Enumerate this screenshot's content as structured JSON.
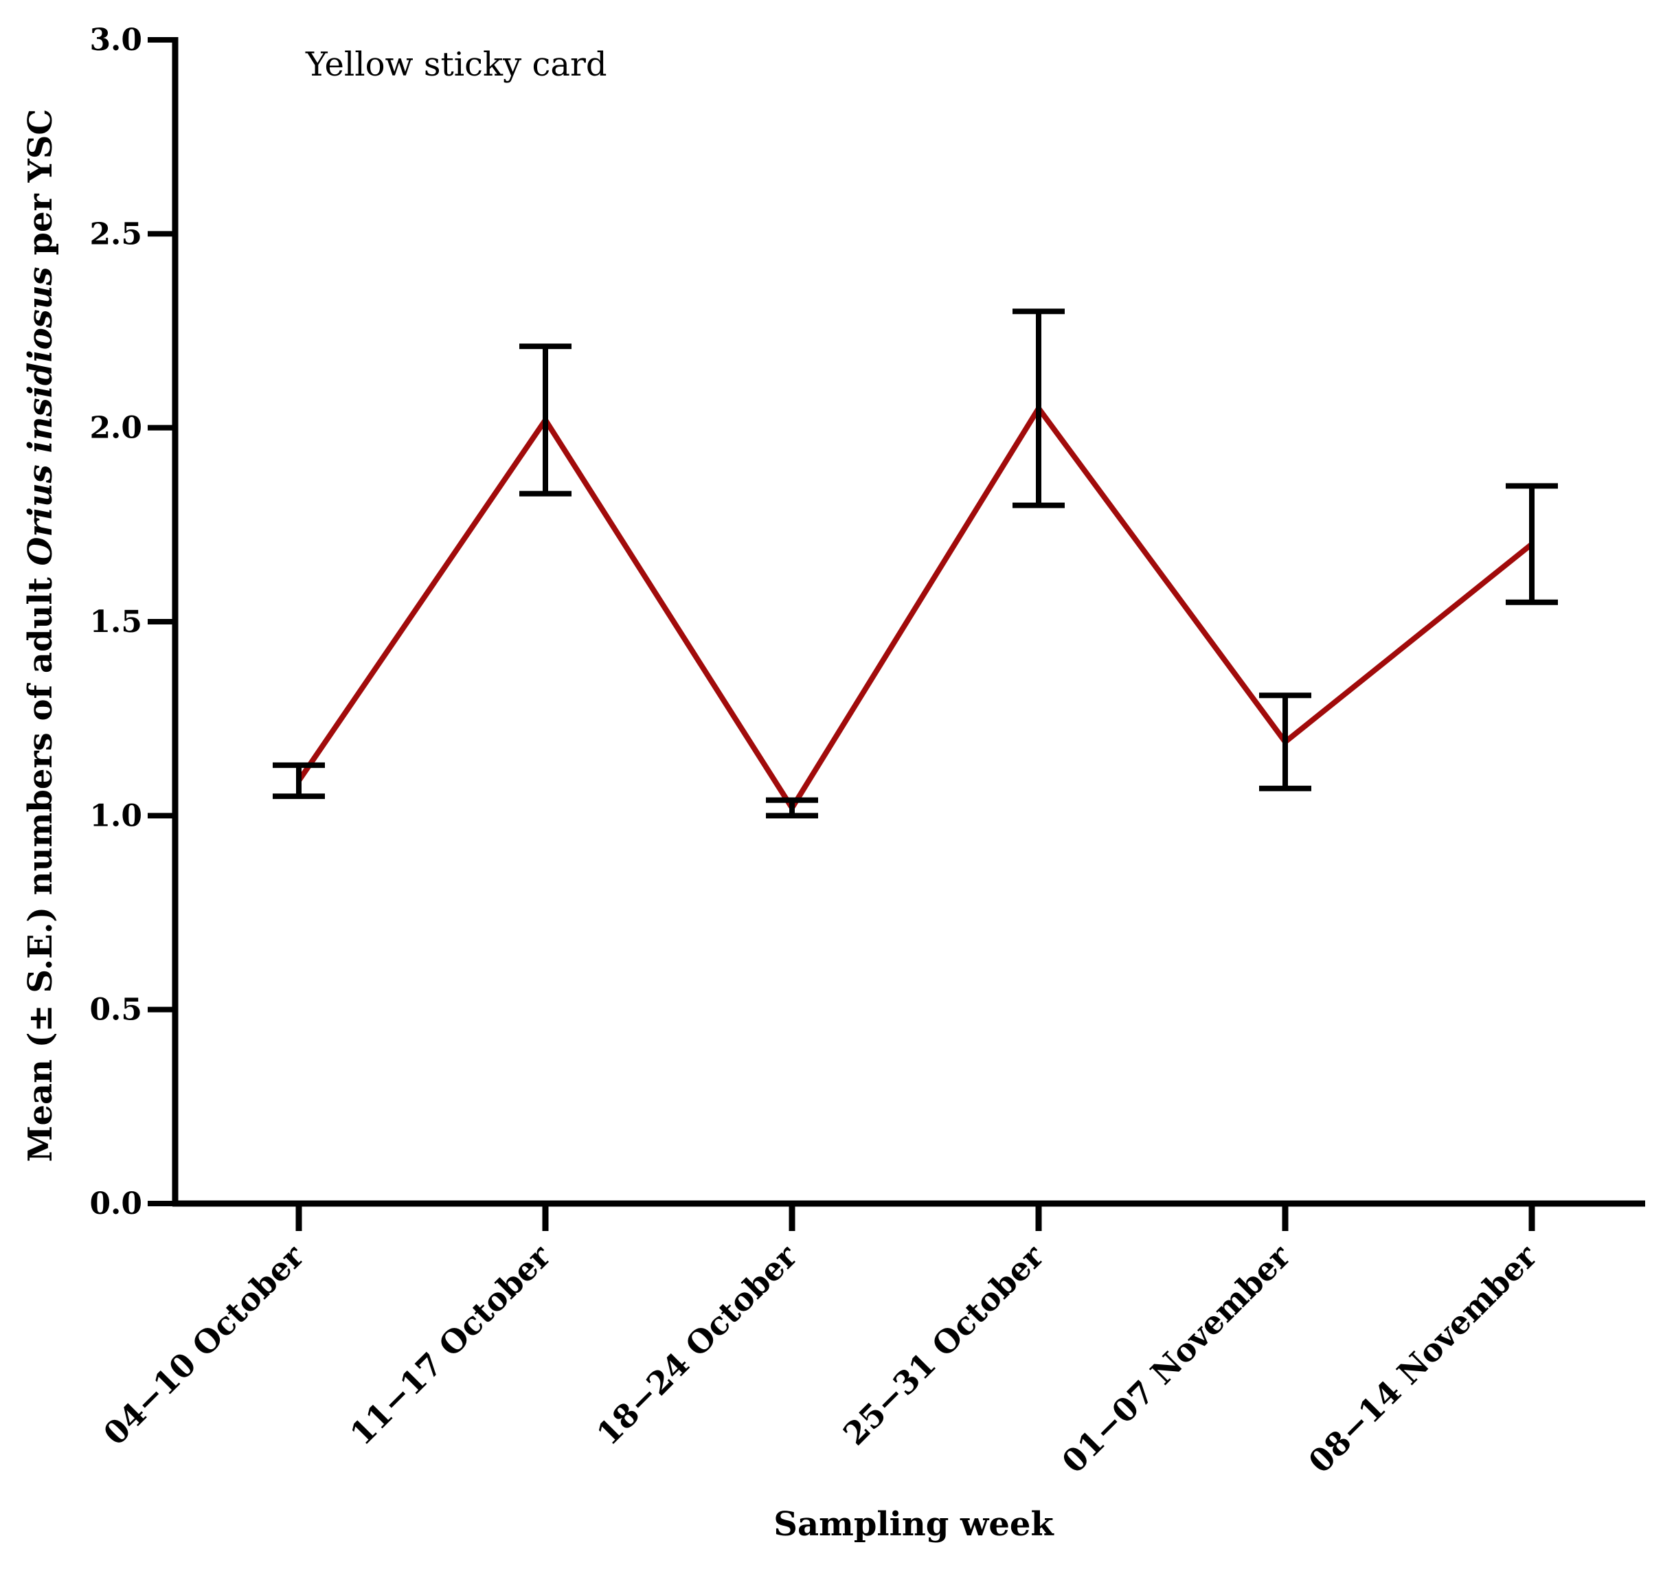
{
  "chart_data": {
    "type": "line",
    "title": "",
    "annotation": "Yellow sticky card",
    "xlabel": "Sampling week",
    "ylabel_parts": [
      {
        "text": "Mean (± S.E.) numbers of adult ",
        "italic": false
      },
      {
        "text": "Orius insidiosus",
        "italic": true
      },
      {
        "text": " per YSC",
        "italic": false
      }
    ],
    "categories": [
      "04−10 October",
      "11−17 October",
      "18−24 October",
      "25−31 October",
      "01−07 November",
      "08−14 November"
    ],
    "series": [
      {
        "name": "Yellow sticky card",
        "values": [
          1.09,
          2.02,
          1.02,
          2.05,
          1.19,
          1.7
        ],
        "se_lower": [
          1.05,
          1.83,
          1.0,
          1.8,
          1.07,
          1.55
        ],
        "se_upper": [
          1.13,
          2.21,
          1.04,
          2.3,
          1.31,
          1.85
        ]
      }
    ],
    "ylim": [
      0,
      3.0
    ],
    "yticks": [
      "0.0",
      "0.5",
      "1.0",
      "1.5",
      "2.0",
      "2.5",
      "3.0"
    ],
    "ytick_values": [
      0,
      0.5,
      1.0,
      1.5,
      2.0,
      2.5,
      3.0
    ],
    "grid": false,
    "legend": "none",
    "colors": {
      "line": "#a10b0b",
      "error_bar": "#000000",
      "axis": "#000000"
    }
  }
}
